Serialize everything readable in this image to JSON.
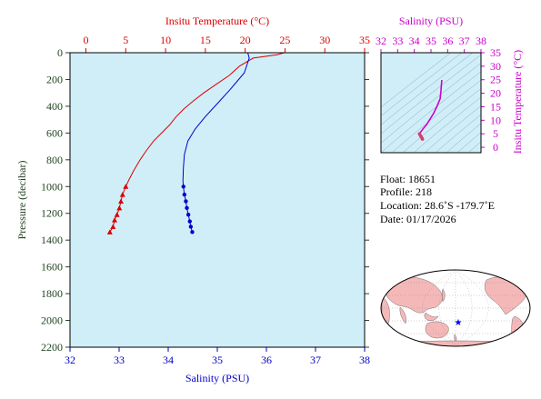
{
  "colors": {
    "temperature": "#dd0000",
    "salinity": "#0000cc",
    "inset": "#cc00cc",
    "pressure_axis": "#224422",
    "plot_bg": "#d0eef8",
    "land": "#f4b8b8",
    "ocean": "#ffffff"
  },
  "chart_data": [
    {
      "type": "line",
      "title": "",
      "top_axis_label": "Insitu Temperature (°C)",
      "bottom_axis_label": "Salinity (PSU)",
      "ylabel": "Pressure (decibar)",
      "temperature_range": [
        -2,
        35
      ],
      "salinity_range": [
        32,
        38
      ],
      "pressure_range": [
        0,
        2200
      ],
      "y_inverted": true,
      "grid": false,
      "temperature_ticks": [
        0,
        5,
        10,
        15,
        20,
        25,
        30,
        35
      ],
      "salinity_ticks": [
        32,
        33,
        34,
        35,
        36,
        37,
        38
      ],
      "pressure_ticks": [
        0,
        200,
        400,
        600,
        800,
        1000,
        1200,
        1400,
        1600,
        1800,
        2000,
        2200
      ],
      "series": [
        {
          "axis": "temperature",
          "marker": "triangle",
          "points": [
            [
              24.9,
              0
            ],
            [
              24.0,
              15
            ],
            [
              21.0,
              40
            ],
            [
              19.3,
              100
            ],
            [
              18.0,
              170
            ],
            [
              16.5,
              230
            ],
            [
              14.8,
              300
            ],
            [
              13.5,
              360
            ],
            [
              12.3,
              420
            ],
            [
              11.3,
              480
            ],
            [
              10.5,
              540
            ],
            [
              9.5,
              600
            ],
            [
              8.5,
              660
            ],
            [
              7.6,
              730
            ],
            [
              6.8,
              800
            ],
            [
              6.0,
              880
            ],
            [
              5.4,
              950
            ],
            [
              5.0,
              1000
            ],
            [
              4.6,
              1060
            ],
            [
              4.4,
              1110
            ],
            [
              4.2,
              1160
            ],
            [
              3.9,
              1210
            ],
            [
              3.6,
              1250
            ],
            [
              3.4,
              1300
            ],
            [
              3.0,
              1340
            ]
          ],
          "markers": [
            [
              5.0,
              1000
            ],
            [
              4.6,
              1060
            ],
            [
              4.4,
              1110
            ],
            [
              4.2,
              1160
            ],
            [
              3.9,
              1210
            ],
            [
              3.6,
              1250
            ],
            [
              3.4,
              1300
            ],
            [
              3.0,
              1340
            ]
          ]
        },
        {
          "axis": "salinity",
          "marker": "circle",
          "points": [
            [
              35.62,
              0
            ],
            [
              35.65,
              40
            ],
            [
              35.55,
              150
            ],
            [
              35.25,
              280
            ],
            [
              35.0,
              380
            ],
            [
              34.75,
              480
            ],
            [
              34.55,
              570
            ],
            [
              34.4,
              660
            ],
            [
              34.33,
              760
            ],
            [
              34.31,
              860
            ],
            [
              34.3,
              960
            ],
            [
              34.31,
              1000
            ],
            [
              34.33,
              1060
            ],
            [
              34.36,
              1110
            ],
            [
              34.38,
              1160
            ],
            [
              34.41,
              1210
            ],
            [
              34.44,
              1260
            ],
            [
              34.46,
              1300
            ],
            [
              34.49,
              1340
            ]
          ],
          "markers": [
            [
              34.31,
              1000
            ],
            [
              34.33,
              1060
            ],
            [
              34.36,
              1110
            ],
            [
              34.38,
              1160
            ],
            [
              34.41,
              1210
            ],
            [
              34.44,
              1260
            ],
            [
              34.46,
              1300
            ],
            [
              34.49,
              1340
            ]
          ]
        }
      ]
    },
    {
      "type": "line",
      "title": "",
      "xlabel": "Salinity (PSU)",
      "ylabel": "Insitu Temperature (°C)",
      "xlim": [
        32,
        38
      ],
      "ylim": [
        -2,
        35
      ],
      "x_ticks": [
        32,
        33,
        34,
        35,
        36,
        37,
        38
      ],
      "y_ticks": [
        0,
        5,
        10,
        15,
        20,
        25,
        30,
        35
      ],
      "background_contours": true,
      "series": [
        {
          "points": [
            [
              35.65,
              24.9
            ],
            [
              35.6,
              21.0
            ],
            [
              35.55,
              18.0
            ],
            [
              35.35,
              15.0
            ],
            [
              35.15,
              12.5
            ],
            [
              34.95,
              10.5
            ],
            [
              34.75,
              8.5
            ],
            [
              34.55,
              7.0
            ],
            [
              34.4,
              5.8
            ],
            [
              34.31,
              5.0
            ],
            [
              34.36,
              4.4
            ],
            [
              34.41,
              3.9
            ],
            [
              34.46,
              3.4
            ],
            [
              34.49,
              3.0
            ]
          ]
        }
      ]
    }
  ],
  "float_info": {
    "float": "Float:  18651",
    "profile": "Profile:  218",
    "location": "Location:  28.6˚S  -179.7˚E",
    "date": "Date:  01/17/2026"
  },
  "map": {
    "marker_label": "float position",
    "marker_color": "#0000ff"
  }
}
